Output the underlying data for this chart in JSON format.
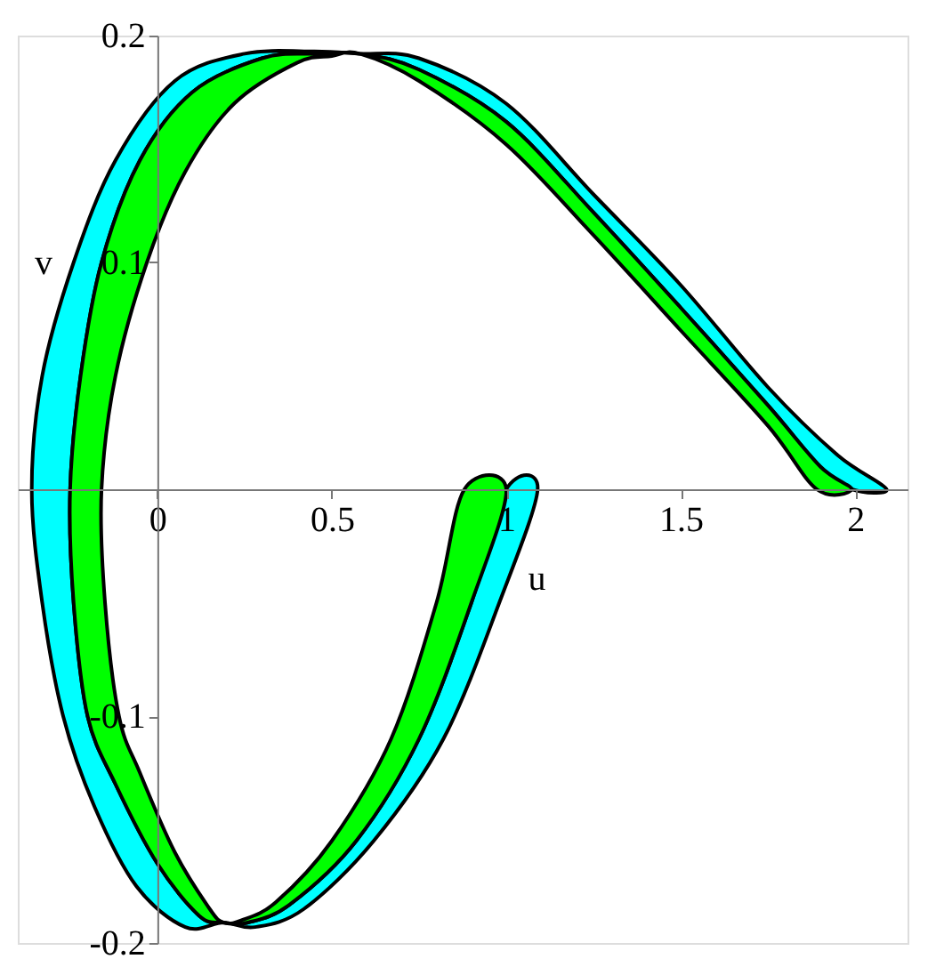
{
  "chart_data": {
    "type": "area",
    "xlabel": "u",
    "ylabel": "v",
    "xlim": [
      -0.4,
      2.15
    ],
    "ylim": [
      -0.2,
      0.2
    ],
    "xticks": [
      0,
      0.5,
      1,
      1.5,
      2
    ],
    "yticks": [
      -0.2,
      -0.1,
      0.1,
      0.2
    ],
    "grid": false,
    "series": [
      {
        "color": "#00ffff",
        "x": [
          1.09,
          0.98,
          0.82,
          0.62,
          0.42,
          0.28,
          0.19,
          0.08,
          -0.06,
          -0.18,
          -0.27,
          -0.33,
          -0.36,
          -0.33,
          -0.24,
          -0.12,
          0.05,
          0.25,
          0.45,
          0.58,
          0.75,
          1.0,
          1.25,
          1.5,
          1.75,
          1.95,
          2.09,
          1.99,
          1.9,
          1.75,
          1.5,
          1.25,
          1.0,
          0.75,
          0.58,
          0.45,
          0.3,
          0.1,
          -0.05,
          -0.16,
          -0.22,
          -0.25,
          -0.24,
          -0.2,
          -0.12,
          0.0,
          0.12,
          0.19,
          0.26,
          0.38,
          0.57,
          0.75,
          0.9,
          1.0
        ],
        "values": [
          0,
          -0.05,
          -0.11,
          -0.155,
          -0.185,
          -0.193,
          -0.191,
          -0.193,
          -0.175,
          -0.14,
          -0.1,
          -0.05,
          0,
          0.05,
          0.1,
          0.145,
          0.18,
          0.192,
          0.193,
          0.192,
          0.19,
          0.17,
          0.13,
          0.09,
          0.045,
          0.015,
          0,
          0,
          0.01,
          0.037,
          0.08,
          0.122,
          0.162,
          0.185,
          0.192,
          0.192,
          0.19,
          0.175,
          0.145,
          0.1,
          0.05,
          0,
          -0.05,
          -0.1,
          -0.13,
          -0.165,
          -0.188,
          -0.191,
          -0.191,
          -0.183,
          -0.155,
          -0.11,
          -0.05,
          0
        ]
      },
      {
        "color": "#00ff00",
        "x": [
          1.0,
          0.9,
          0.75,
          0.57,
          0.38,
          0.26,
          0.19,
          0.12,
          0.0,
          -0.12,
          -0.2,
          -0.24,
          -0.25,
          -0.22,
          -0.16,
          -0.05,
          0.1,
          0.3,
          0.45,
          0.58,
          0.75,
          1.0,
          1.25,
          1.5,
          1.75,
          1.9,
          1.99,
          1.89,
          1.75,
          1.5,
          1.25,
          1.0,
          0.75,
          0.58,
          0.5,
          0.4,
          0.22,
          0.08,
          -0.03,
          -0.12,
          -0.16,
          -0.15,
          -0.11,
          -0.05,
          0.05,
          0.15,
          0.19,
          0.24,
          0.34,
          0.5,
          0.67,
          0.8,
          0.88
        ],
        "values": [
          0,
          -0.05,
          -0.11,
          -0.155,
          -0.183,
          -0.191,
          -0.191,
          -0.188,
          -0.165,
          -0.13,
          -0.1,
          -0.05,
          0,
          0.05,
          0.1,
          0.145,
          0.175,
          0.19,
          0.192,
          0.192,
          0.185,
          0.162,
          0.122,
          0.08,
          0.037,
          0.01,
          0,
          0,
          0.028,
          0.07,
          0.112,
          0.152,
          0.18,
          0.192,
          0.191,
          0.188,
          0.17,
          0.14,
          0.1,
          0.05,
          0,
          -0.05,
          -0.1,
          -0.125,
          -0.16,
          -0.185,
          -0.191,
          -0.19,
          -0.182,
          -0.155,
          -0.11,
          -0.05,
          0
        ]
      }
    ]
  }
}
